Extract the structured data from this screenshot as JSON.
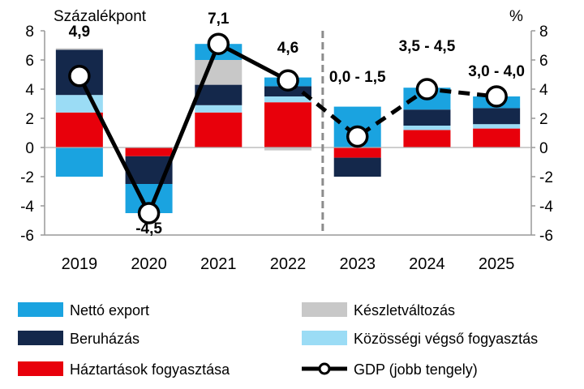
{
  "chart_data": {
    "type": "bar",
    "stacked": true,
    "left_axis_label": "Százalékpont",
    "right_axis_label": "%",
    "ylim": [
      -6,
      8
    ],
    "yticks": [
      "-6",
      "-4",
      "-2",
      "0",
      "2",
      "4",
      "6",
      "8"
    ],
    "categories": [
      "2019",
      "2020",
      "2021",
      "2022",
      "2023",
      "2024",
      "2025"
    ],
    "forecast_divider_after": "2022",
    "colors": {
      "netto_export": "#1aa3e0",
      "keszletvaltozas": "#c8c8c8",
      "beruhazas": "#14284b",
      "kozossegi": "#9bdcf5",
      "haztartasok": "#e8000b",
      "gdp": "#000000"
    },
    "series": [
      {
        "key": "haztartasok",
        "name": "Háztartások fogyasztása",
        "values": [
          2.4,
          -0.6,
          2.4,
          3.1,
          -0.7,
          1.2,
          1.3
        ]
      },
      {
        "key": "kozossegi",
        "name": "Közösségi végső fogyasztás",
        "values": [
          1.2,
          0.0,
          0.5,
          0.4,
          0.0,
          0.3,
          0.3
        ]
      },
      {
        "key": "beruhazas",
        "name": "Beruházás",
        "values": [
          3.1,
          -1.9,
          1.4,
          0.7,
          -1.3,
          1.1,
          1.1
        ]
      },
      {
        "key": "keszletvaltozas",
        "name": "Készletváltozás",
        "values": [
          0.1,
          0.0,
          1.7,
          -0.2,
          0.0,
          0.0,
          0.0
        ]
      },
      {
        "key": "netto_export",
        "name": "Nettó export",
        "values": [
          -2.0,
          -2.0,
          1.1,
          0.6,
          2.8,
          1.5,
          0.8
        ]
      }
    ],
    "gdp": {
      "name": "GDP (jobb tengely)",
      "values": [
        4.9,
        -4.5,
        7.1,
        4.6,
        0.75,
        4.0,
        3.5
      ],
      "labels": [
        "4,9",
        "-4,5",
        "7,1",
        "4,6",
        "0,0 - 1,5",
        "3,5 - 4,5",
        "3,0 - 4,0"
      ],
      "label_y": [
        7.6,
        -5.9,
        8.5,
        6.5,
        4.5,
        6.6,
        4.9
      ],
      "solid_through": "2022"
    },
    "legend": [
      {
        "key": "netto_export",
        "label": "Nettó export",
        "kind": "box"
      },
      {
        "key": "keszletvaltozas",
        "label": "Készletváltozás",
        "kind": "box"
      },
      {
        "key": "beruhazas",
        "label": "Beruházás",
        "kind": "box"
      },
      {
        "key": "kozossegi",
        "label": "Közösségi végső fogyasztás",
        "kind": "box"
      },
      {
        "key": "haztartasok",
        "label": "Háztartások fogyasztása",
        "kind": "box"
      },
      {
        "key": "gdp",
        "label": "GDP (jobb tengely)",
        "kind": "line"
      }
    ]
  }
}
